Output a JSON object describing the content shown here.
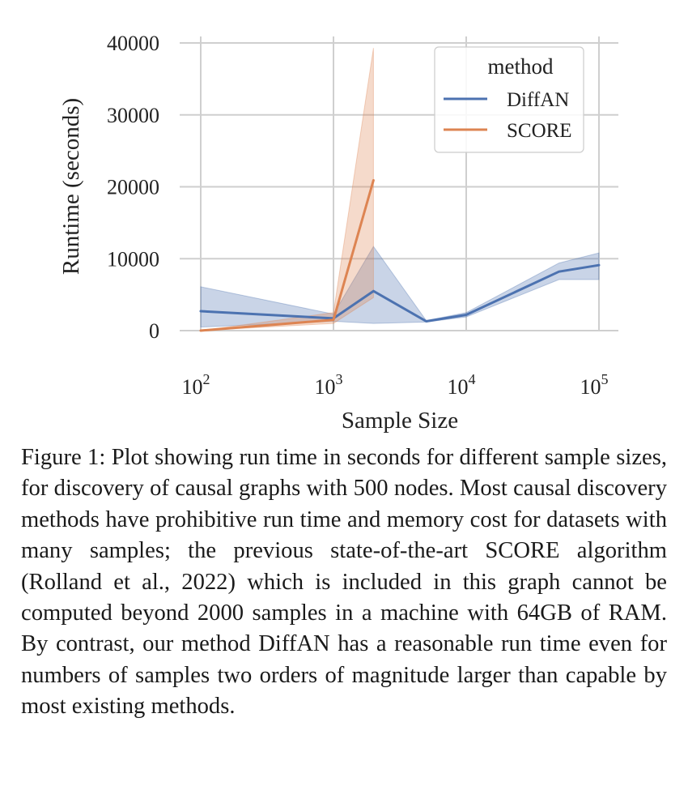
{
  "chart_data": {
    "type": "line",
    "title": "",
    "xlabel": "Sample Size",
    "ylabel": "Runtime (seconds)",
    "xscale": "log",
    "xlim": [
      100,
      100000
    ],
    "ylim": [
      0,
      40000
    ],
    "yticks": [
      0,
      10000,
      20000,
      30000,
      40000
    ],
    "xticks": [
      {
        "value": 100,
        "base": "10",
        "exp": "2"
      },
      {
        "value": 1000,
        "base": "10",
        "exp": "3"
      },
      {
        "value": 10000,
        "base": "10",
        "exp": "4"
      },
      {
        "value": 100000,
        "base": "10",
        "exp": "5"
      }
    ],
    "grid": true,
    "legend": {
      "title": "method",
      "placement": "top-right"
    },
    "series": [
      {
        "name": "DiffAN",
        "color": "#4c72b0",
        "x": [
          100,
          1000,
          2000,
          5000,
          10000,
          50000,
          100000
        ],
        "y": [
          2700,
          1700,
          5500,
          1300,
          2200,
          8200,
          9100
        ],
        "ci_low": [
          500,
          1300,
          1000,
          1200,
          1900,
          7100,
          7100
        ],
        "ci_high": [
          6100,
          2300,
          11700,
          1400,
          2500,
          9400,
          10800
        ]
      },
      {
        "name": "SCORE",
        "color": "#dd8452",
        "x": [
          100,
          1000,
          2000
        ],
        "y": [
          0,
          1500,
          20900
        ],
        "ci_low": [
          0,
          1000,
          4600
        ],
        "ci_high": [
          0,
          2500,
          39300
        ]
      }
    ]
  },
  "caption": {
    "text": "Figure 1: Plot showing run time in seconds for different sample sizes, for discovery of causal graphs with 500 nodes. Most causal discovery methods have prohibitive run time and memory cost for datasets with many samples; the previous state-of-the-art SCORE algorithm (Rolland et al., 2022) which is included in this graph cannot be computed beyond 2000 samples in a machine with 64GB of RAM. By contrast, our method DiffAN has a reasonable run time even for numbers of samples two orders of magnitude larger than capable by most existing methods."
  }
}
